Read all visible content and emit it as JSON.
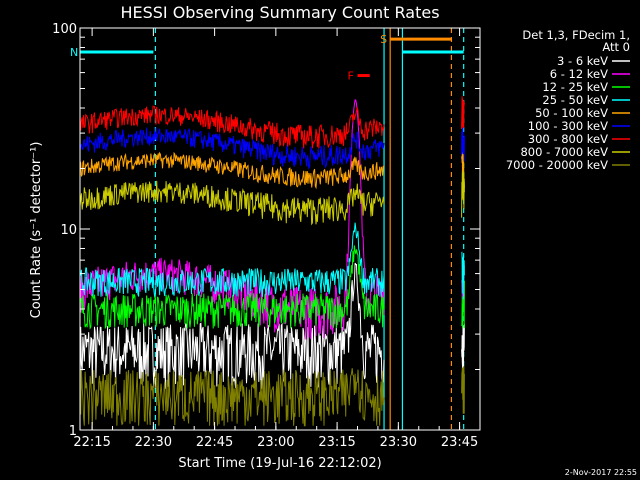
{
  "chart_data": {
    "type": "line",
    "title": "HESSI Observing Summary Count Rates",
    "xlabel": "Start Time (19-Jul-16 22:12:02)",
    "ylabel": "Count Rate (s⁻¹ detector⁻¹)",
    "y_scale": "log",
    "ylim": [
      1,
      100
    ],
    "xlim": [
      "22:12:02",
      "23:50:00"
    ],
    "x_ticks": [
      "22:15",
      "22:30",
      "22:45",
      "23:00",
      "23:15",
      "23:30",
      "23:45"
    ],
    "y_ticks": [
      "1",
      "10",
      "100"
    ],
    "legend_position": "top-right",
    "legend_header": [
      "Det 1,3, FDecim 1,",
      "Att 0"
    ],
    "series": [
      {
        "name": "3 - 6 keV",
        "color": "#ffffff",
        "baseline": 2.5,
        "noise": 0.9,
        "bump": 0.0,
        "flare": 6.0
      },
      {
        "name": "6 - 12 keV",
        "color": "#ff00ff",
        "baseline": 5.0,
        "noise": 1.2,
        "bump": 1.0,
        "flare": 45.0
      },
      {
        "name": "12 - 25 keV",
        "color": "#00ff00",
        "baseline": 4.0,
        "noise": 0.8,
        "bump": 0.0,
        "flare": 8.0
      },
      {
        "name": "25 - 50 keV",
        "color": "#00ffff",
        "baseline": 5.5,
        "noise": 0.9,
        "bump": 0.0,
        "flare": 10.0
      },
      {
        "name": "50 - 100 keV",
        "color": "#ffa500",
        "baseline": 20.0,
        "noise": 2.0,
        "bump": 2.0,
        "flare": 22.0
      },
      {
        "name": "100 - 300 keV",
        "color": "#0000ff",
        "baseline": 26.0,
        "noise": 3.0,
        "bump": 3.0,
        "flare": 30.0
      },
      {
        "name": "300 - 800 keV",
        "color": "#ff0000",
        "baseline": 33.0,
        "noise": 4.0,
        "bump": 4.0,
        "flare": 40.0
      },
      {
        "name": "800 - 7000 keV",
        "color": "#cccc00",
        "baseline": 14.0,
        "noise": 2.0,
        "bump": 1.5,
        "flare": 16.0
      },
      {
        "name": "7000 - 20000 keV",
        "color": "#808000",
        "baseline": 1.5,
        "noise": 0.5,
        "bump": 0.0,
        "flare": 2.0
      }
    ],
    "flag_bars": [
      {
        "label": "N",
        "color": "#00ffff",
        "start": "22:12:02",
        "end": "22:30:00",
        "y": 76
      },
      {
        "label": "S",
        "color": "#ff8c00",
        "start": "23:28:00",
        "end": "23:43:00",
        "y": 88
      },
      {
        "label": "",
        "color": "#00ffff",
        "start": "23:31:00",
        "end": "23:46:00",
        "y": 76
      },
      {
        "label": "F",
        "color": "#ff0000",
        "start": "23:20:00",
        "end": "23:23:00",
        "y": 58
      }
    ],
    "event_lines": [
      {
        "time": "22:30:30",
        "color": "#00ffff",
        "style": "dashed"
      },
      {
        "time": "23:26:30",
        "color": "#00ffff",
        "style": "solid"
      },
      {
        "time": "23:28:00",
        "color": "#ff8c00",
        "style": "solid"
      },
      {
        "time": "23:31:00",
        "color": "#00ffff",
        "style": "solid"
      },
      {
        "time": "23:43:00",
        "color": "#ff8c00",
        "style": "dashed"
      },
      {
        "time": "23:46:00",
        "color": "#00ffff",
        "style": "dashed"
      }
    ],
    "data_gap": [
      "23:26:30",
      "23:45:30"
    ]
  },
  "footer": {
    "date_stamp": "2-Nov-2017 22:55"
  }
}
